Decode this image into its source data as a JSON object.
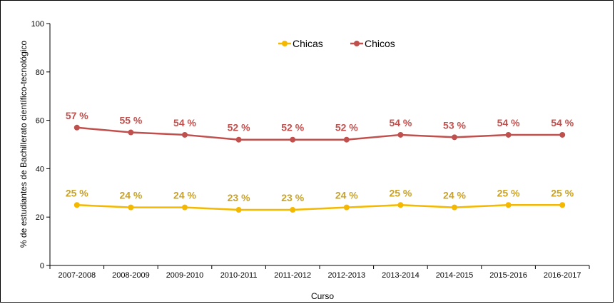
{
  "chart_data": {
    "type": "line",
    "xlabel": "Curso",
    "ylabel": "% de estudiantes de Bachillerato científico-tecnológico",
    "ylim": [
      0,
      100
    ],
    "yticks": [
      "0",
      "20",
      "40",
      "60",
      "80",
      "100"
    ],
    "categories": [
      "2007-2008",
      "2008-2009",
      "2009-2010",
      "2010-2011",
      "2011-2012",
      "2012-2013",
      "2013-2014",
      "2014-2015",
      "2015-2016",
      "2016-2017"
    ],
    "series": [
      {
        "name": "Chicas",
        "color": "#F5B800",
        "label_color": "#C9A227",
        "values": [
          25,
          24,
          24,
          23,
          23,
          24,
          25,
          24,
          25,
          25
        ],
        "labels": [
          "25 %",
          "24 %",
          "24 %",
          "23 %",
          "23 %",
          "24 %",
          "25 %",
          "24 %",
          "25 %",
          "25 %"
        ]
      },
      {
        "name": "Chicos",
        "color": "#C0504D",
        "label_color": "#C0504D",
        "values": [
          57,
          55,
          54,
          52,
          52,
          52,
          54,
          53,
          54,
          54
        ],
        "labels": [
          "57 %",
          "55 %",
          "54 %",
          "52 %",
          "52 %",
          "52 %",
          "54 %",
          "53 %",
          "54 %",
          "54 %"
        ]
      }
    ],
    "legend_position": "top-center",
    "grid": false
  }
}
